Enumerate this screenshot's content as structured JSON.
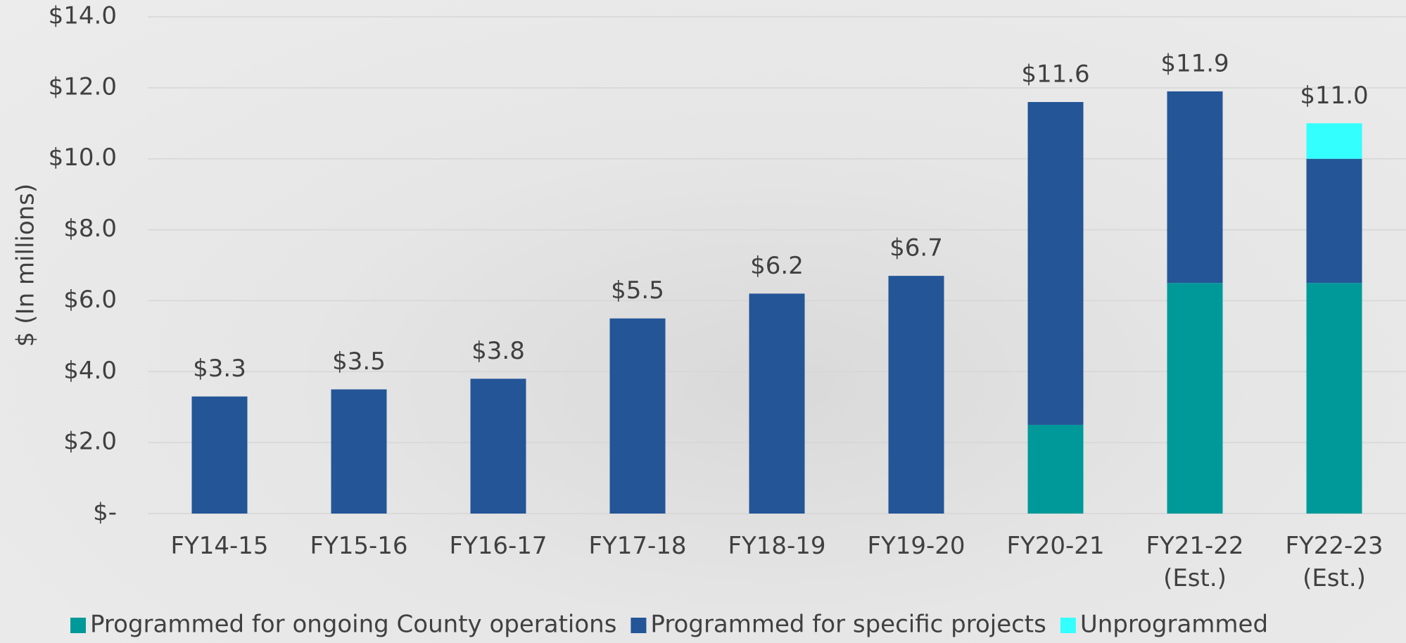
{
  "chart_data": {
    "type": "stacked-bar",
    "ylabel": "$ (In millions)",
    "categories": [
      "FY14-15",
      "FY15-16",
      "FY16-17",
      "FY17-18",
      "FY18-19",
      "FY19-20",
      "FY20-21",
      "FY21-22 (Est.)",
      "FY22-23 (Est.)"
    ],
    "series": [
      {
        "name": "Programmed for ongoing County operations",
        "color": "#009999",
        "values": [
          0,
          0,
          0,
          0,
          0,
          0,
          2.5,
          6.5,
          6.5
        ]
      },
      {
        "name": "Programmed for specific projects",
        "color": "#235597",
        "values": [
          3.3,
          3.5,
          3.8,
          5.5,
          6.2,
          6.7,
          9.1,
          5.4,
          3.5
        ]
      },
      {
        "name": "Unprogrammed",
        "color": "#33ffff",
        "values": [
          0,
          0,
          0,
          0,
          0,
          0,
          0,
          0,
          1.0
        ]
      }
    ],
    "totals": [
      3.3,
      3.5,
      3.8,
      5.5,
      6.2,
      6.7,
      11.6,
      11.9,
      11.0
    ],
    "total_labels": [
      "$3.3",
      "$3.5",
      "$3.8",
      "$5.5",
      "$6.2",
      "$6.7",
      "$11.6",
      "$11.9",
      "$11.0"
    ],
    "ylim": [
      0,
      14
    ],
    "yticks": [
      {
        "value": 0,
        "label": "$-"
      },
      {
        "value": 2,
        "label": "$2.0"
      },
      {
        "value": 4,
        "label": "$4.0"
      },
      {
        "value": 6,
        "label": "$6.0"
      },
      {
        "value": 8,
        "label": "$8.0"
      },
      {
        "value": 10,
        "label": "$10.0"
      },
      {
        "value": 12,
        "label": "$12.0"
      },
      {
        "value": 14,
        "label": "$14.0"
      }
    ],
    "grid": true,
    "legend": "bottom"
  }
}
